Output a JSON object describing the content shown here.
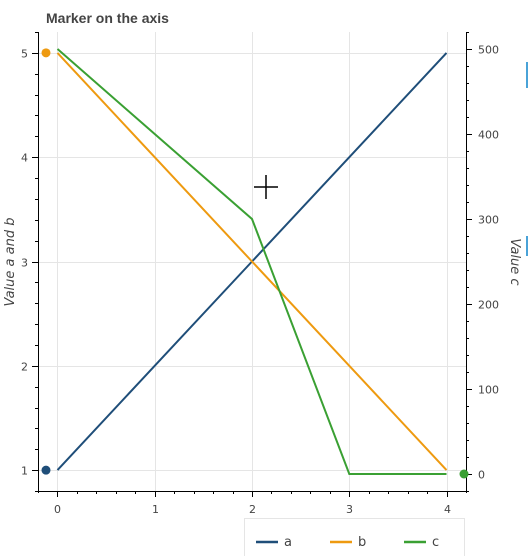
{
  "chart_data": {
    "type": "line",
    "title": "Marker on the axis",
    "xlabel": "",
    "ylabel": "Value a and b",
    "y2label": "Value c",
    "x": [
      0,
      1,
      2,
      3,
      4
    ],
    "xlim": [
      -0.2,
      4.2
    ],
    "ylim": [
      0.8,
      5.2
    ],
    "y2lim": [
      -20,
      520
    ],
    "x_ticks": [
      "0",
      "1",
      "2",
      "3",
      "4"
    ],
    "y_ticks": [
      "1",
      "2",
      "3",
      "4",
      "5"
    ],
    "y2_ticks": [
      "0",
      "100",
      "200",
      "300",
      "400",
      "500"
    ],
    "grid": true,
    "series": [
      {
        "name": "a",
        "axis": "left",
        "color": "#1f4e79",
        "values": [
          1,
          2,
          3,
          4,
          5
        ]
      },
      {
        "name": "b",
        "axis": "left",
        "color": "#ee9a10",
        "values": [
          5,
          4,
          3,
          2,
          1
        ]
      },
      {
        "name": "c",
        "axis": "right",
        "color": "#3aa033",
        "values": [
          500,
          400,
          300,
          0,
          0
        ]
      }
    ],
    "axis_markers": [
      {
        "axis": "left",
        "y": 5,
        "color": "#ee9a10"
      },
      {
        "axis": "left",
        "y": 1,
        "color": "#1f4e79"
      },
      {
        "axis": "right",
        "y": 0,
        "color": "#3aa033"
      }
    ],
    "legend": {
      "placement": "bottom-right",
      "orientation": "horizontal"
    },
    "crosshair": {
      "x": 2.1,
      "y": 3.75
    }
  }
}
